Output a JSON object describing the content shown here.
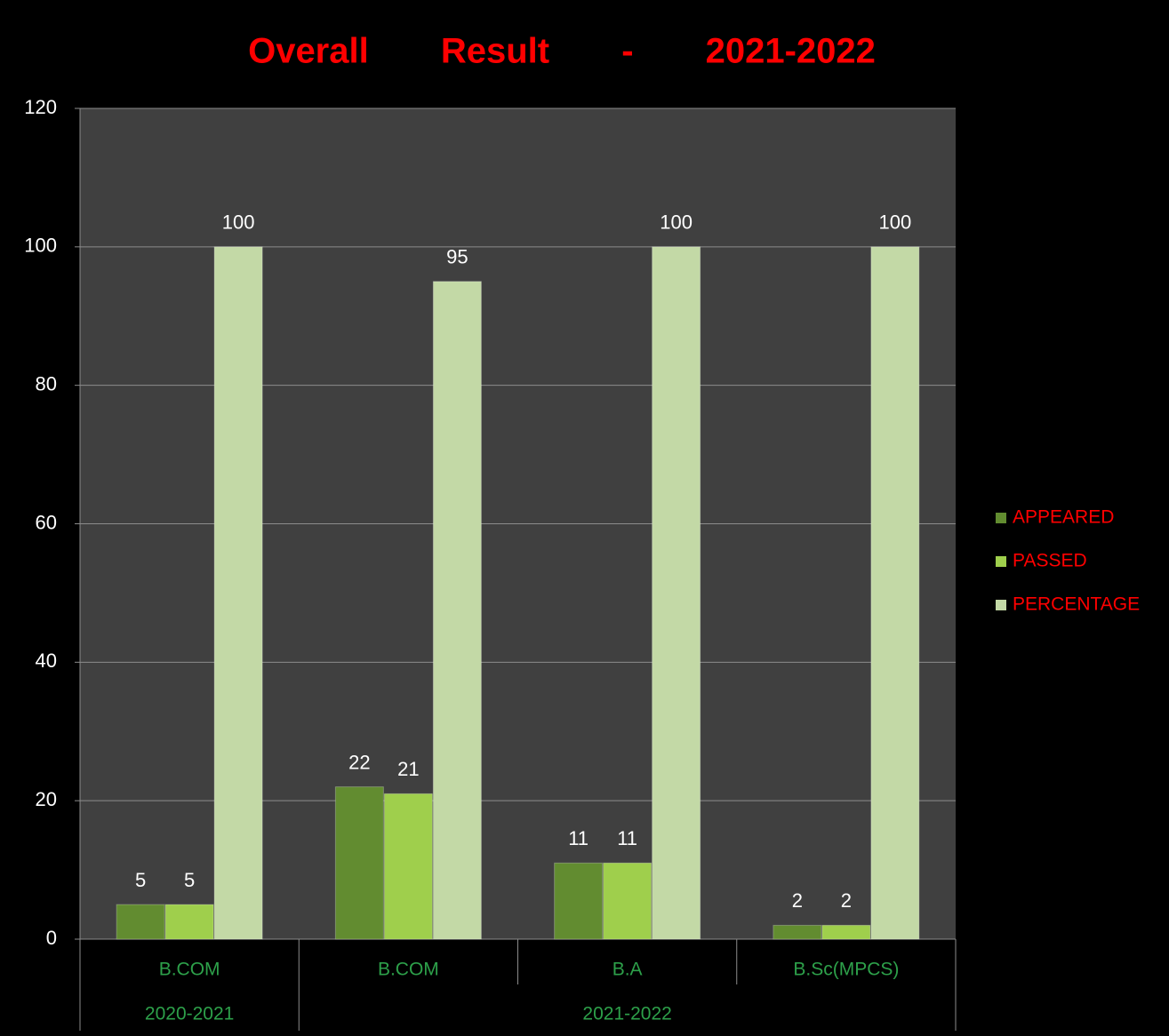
{
  "chart_data": {
    "type": "bar",
    "title": "Overall Result - 2021-2022",
    "categories": [
      "B.COM",
      "B.COM",
      "B.A",
      "B.Sc(MPCS)"
    ],
    "category_groups": [
      "2020-2021",
      "2021-2022",
      "2021-2022",
      "2021-2022"
    ],
    "series": [
      {
        "name": "APPEARED",
        "color": "#628c30",
        "values": [
          5,
          22,
          11,
          2
        ]
      },
      {
        "name": "PASSED",
        "color": "#9fcf4c",
        "values": [
          5,
          21,
          11,
          2
        ]
      },
      {
        "name": "PERCENTAGE",
        "color": "#c3d9a6",
        "values": [
          100,
          95,
          100,
          100
        ]
      }
    ],
    "ylim": [
      0,
      120
    ],
    "yticks": [
      0,
      20,
      40,
      60,
      80,
      100,
      120
    ],
    "grid": true,
    "legend": "right"
  }
}
